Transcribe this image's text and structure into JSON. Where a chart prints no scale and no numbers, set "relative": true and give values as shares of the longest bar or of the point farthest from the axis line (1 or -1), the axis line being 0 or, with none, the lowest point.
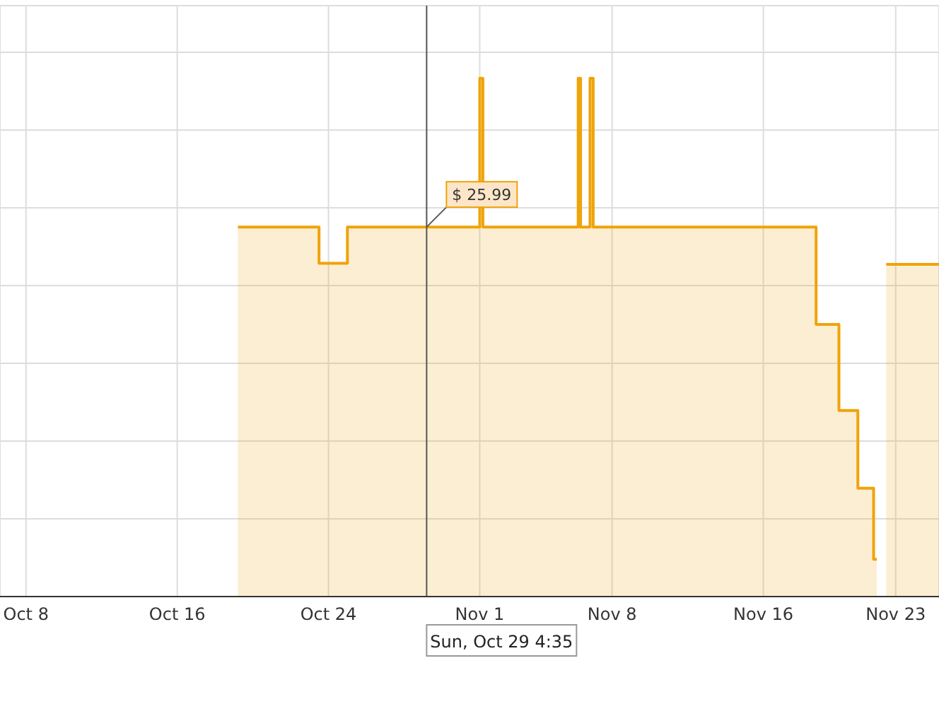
{
  "chart_data": {
    "type": "area",
    "relative": true,
    "grid": true,
    "marker": "none",
    "line_style": "solid",
    "xlim": [
      "--10-06T15:00",
      "--11-25T07:00"
    ],
    "xticks": [
      {
        "value": "--10-08T00:00",
        "label": "Oct 8"
      },
      {
        "value": "--10-16T00:00",
        "label": "Oct 16"
      },
      {
        "value": "--10-24T00:00",
        "label": "Oct 24"
      },
      {
        "value": "--11-01T00:00",
        "label": "Nov 1"
      },
      {
        "value": "--11-08T00:00",
        "label": "Nov 8"
      },
      {
        "value": "--11-16T00:00",
        "label": "Nov 16"
      },
      {
        "value": "--11-23T00:00",
        "label": "Nov 23"
      }
    ],
    "series": [
      {
        "color": "#f0a30a",
        "x": [
          "--10-19T05:00",
          "--10-23T12:00",
          "--10-23T12:00",
          "--10-25T00:00",
          "--10-25T00:00",
          "--11-01T00:00",
          "--11-01T00:00",
          "--11-01T04:00",
          "--11-01T04:00",
          "--11-06T05:00",
          "--11-06T05:00",
          "--11-06T08:00",
          "--11-06T08:00",
          "--11-06T20:00",
          "--11-06T20:00",
          "--11-07T00:00",
          "--11-07T00:00",
          "--11-18T19:00",
          "--11-18T19:00",
          "--11-20T00:00",
          "--11-20T00:00",
          "--11-21T00:00",
          "--11-21T00:00",
          "--11-21T20:00",
          "--11-21T20:00",
          "--11-22T00:00",
          "--11-22T06:00",
          "--11-22T12:00",
          "--11-25T07:00"
        ],
        "values": [
          0.713,
          0.713,
          0.643,
          0.643,
          0.713,
          0.713,
          1,
          1,
          0.713,
          0.713,
          1,
          1,
          0.713,
          0.713,
          1,
          1,
          0.713,
          0.713,
          0.525,
          0.525,
          0.359,
          0.359,
          0.209,
          0.209,
          0.072,
          0.072,
          null,
          0.641,
          0.641
        ]
      }
    ],
    "ref_lines": [
      {
        "axis": "x",
        "value": "--10-29T04:35",
        "label": "Sun, Oct 29 4:35",
        "color": "#555555"
      }
    ],
    "annotations": [
      {
        "text": "$ 25.99",
        "x": "--10-29T04:35",
        "y": 0.713
      }
    ]
  }
}
